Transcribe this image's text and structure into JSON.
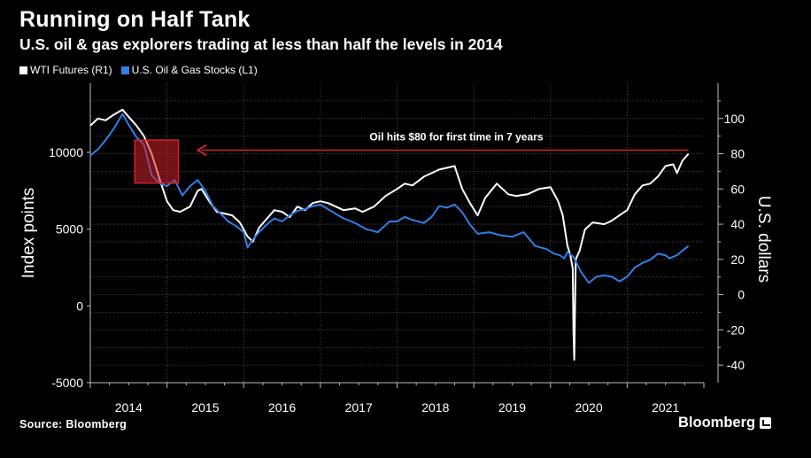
{
  "header": {
    "title": "Running on Half Tank",
    "subtitle": "U.S. oil & gas explorers trading at less than half the levels in 2014"
  },
  "colors": {
    "wti": "#ffffff",
    "stocks": "#2f7fe6",
    "annotation": "#d0232b",
    "grid": "#5a5a5a",
    "background": "#000000"
  },
  "chart_data": {
    "type": "line",
    "title": "Running on Half Tank",
    "subtitle": "U.S. oil & gas explorers trading at less than half the levels in 2014",
    "ylabel_left": "Index points",
    "ylabel_right": "U.S. dollars",
    "xlim": [
      2014.0,
      2022.0
    ],
    "ylim_left": [
      -5000,
      14500
    ],
    "ylim_right": [
      -50,
      120
    ],
    "left_ticks": [
      -5000,
      0,
      5000,
      10000
    ],
    "left_tick_labels": [
      "-5000",
      "0",
      "5000",
      "10000"
    ],
    "right_ticks": [
      -40,
      -20,
      0,
      20,
      40,
      60,
      80,
      100
    ],
    "right_tick_labels": [
      "-40",
      "-20",
      "0",
      "20",
      "40",
      "60",
      "80",
      "100"
    ],
    "x_ticks": [
      2014,
      2015,
      2016,
      2017,
      2018,
      2019,
      2020,
      2021
    ],
    "x_tick_labels": [
      "2014",
      "2015",
      "2016",
      "2017",
      "2018",
      "2019",
      "2020",
      "2021"
    ],
    "grid": true,
    "legend_position": "top-left",
    "series": [
      {
        "name": "WTI Futures (R1)",
        "axis": "right",
        "x": [
          2014.0,
          2014.1,
          2014.2,
          2014.3,
          2014.42,
          2014.5,
          2014.6,
          2014.7,
          2014.8,
          2014.9,
          2015.0,
          2015.08,
          2015.17,
          2015.3,
          2015.4,
          2015.45,
          2015.55,
          2015.65,
          2015.75,
          2015.85,
          2015.95,
          2016.05,
          2016.12,
          2016.2,
          2016.3,
          2016.4,
          2016.5,
          2016.6,
          2016.7,
          2016.8,
          2016.9,
          2017.0,
          2017.1,
          2017.2,
          2017.3,
          2017.45,
          2017.55,
          2017.7,
          2017.85,
          2018.0,
          2018.1,
          2018.2,
          2018.35,
          2018.45,
          2018.55,
          2018.75,
          2018.85,
          2018.95,
          2019.05,
          2019.15,
          2019.3,
          2019.45,
          2019.55,
          2019.7,
          2019.85,
          2020.0,
          2020.1,
          2020.16,
          2020.22,
          2020.26,
          2020.29,
          2020.3,
          2020.31,
          2020.33,
          2020.38,
          2020.45,
          2020.55,
          2020.7,
          2020.8,
          2020.9,
          2021.0,
          2021.1,
          2021.2,
          2021.3,
          2021.4,
          2021.5,
          2021.6,
          2021.65,
          2021.72,
          2021.8
        ],
        "values": [
          96,
          100,
          99,
          102,
          105,
          101,
          96,
          90,
          80,
          66,
          53,
          48,
          47,
          50,
          59,
          60,
          53,
          47,
          46,
          45,
          41,
          33,
          30,
          38,
          43,
          48,
          47,
          44,
          50,
          48,
          52,
          53,
          52,
          50,
          48,
          49,
          47,
          50,
          56,
          60,
          63,
          62,
          67,
          69,
          71,
          73,
          60,
          52,
          45,
          55,
          63,
          57,
          56,
          57,
          60,
          61,
          53,
          45,
          28,
          22,
          15,
          -20,
          -37,
          20,
          25,
          37,
          41,
          40,
          42,
          45,
          48,
          57,
          62,
          63,
          67,
          73,
          74,
          69,
          76,
          80
        ]
      },
      {
        "name": "U.S. Oil & Gas Stocks (L1)",
        "axis": "left",
        "x": [
          2014.0,
          2014.1,
          2014.2,
          2014.3,
          2014.42,
          2014.5,
          2014.6,
          2014.7,
          2014.75,
          2014.8,
          2014.9,
          2015.0,
          2015.1,
          2015.2,
          2015.3,
          2015.4,
          2015.5,
          2015.6,
          2015.7,
          2015.8,
          2015.9,
          2016.0,
          2016.05,
          2016.1,
          2016.2,
          2016.3,
          2016.4,
          2016.5,
          2016.6,
          2016.7,
          2016.8,
          2016.9,
          2017.0,
          2017.1,
          2017.2,
          2017.3,
          2017.45,
          2017.6,
          2017.75,
          2017.9,
          2018.0,
          2018.1,
          2018.2,
          2018.35,
          2018.45,
          2018.55,
          2018.65,
          2018.75,
          2018.85,
          2018.95,
          2019.05,
          2019.2,
          2019.35,
          2019.5,
          2019.65,
          2019.8,
          2019.95,
          2020.05,
          2020.12,
          2020.18,
          2020.22,
          2020.3,
          2020.4,
          2020.5,
          2020.6,
          2020.7,
          2020.8,
          2020.9,
          2021.0,
          2021.1,
          2021.2,
          2021.3,
          2021.4,
          2021.5,
          2021.55,
          2021.65,
          2021.72,
          2021.8
        ],
        "values": [
          9800,
          10200,
          10800,
          11500,
          12500,
          11800,
          11000,
          10500,
          9500,
          8500,
          8000,
          7800,
          8200,
          7200,
          7800,
          8200,
          7500,
          6500,
          6000,
          5500,
          5200,
          4800,
          3800,
          4200,
          4800,
          5300,
          5700,
          5500,
          5900,
          6200,
          6300,
          6500,
          6600,
          6300,
          6000,
          5700,
          5400,
          5000,
          4800,
          5500,
          5500,
          5800,
          5600,
          5400,
          5800,
          6500,
          6400,
          6600,
          6100,
          5300,
          4700,
          4800,
          4600,
          4500,
          4800,
          3900,
          3700,
          3400,
          3300,
          3100,
          3500,
          3200,
          2200,
          1500,
          1900,
          2000,
          1900,
          1600,
          1900,
          2500,
          2800,
          3000,
          3400,
          3300,
          3100,
          3300,
          3600,
          3900
        ]
      }
    ],
    "annotations": [
      {
        "text": "Oil hits $80 for first time in 7 years",
        "type": "arrow",
        "from_x": 2021.8,
        "to_x": 2015.4,
        "y_right": 82
      },
      {
        "type": "highlight-box",
        "x0": 2014.58,
        "x1": 2015.15,
        "y0_left": 8000,
        "y1_left": 10800
      }
    ]
  },
  "footer": {
    "source": "Source: Bloomberg",
    "brand": "Bloomberg"
  }
}
